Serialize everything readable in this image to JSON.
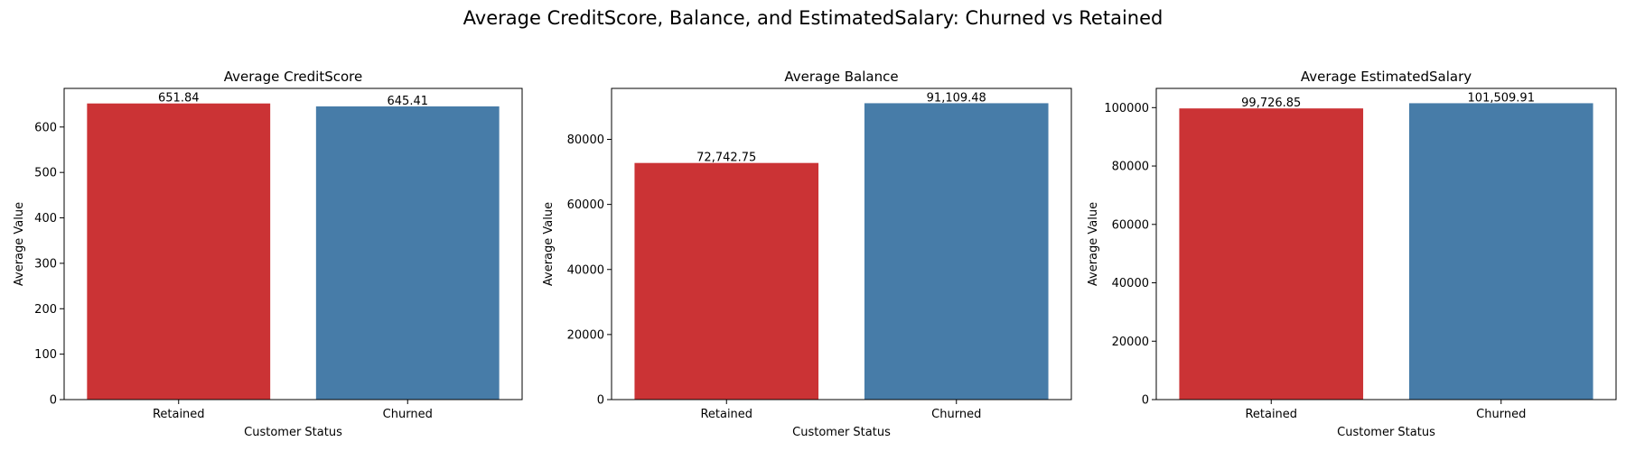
{
  "figure": {
    "title": "Average CreditScore, Balance, and EstimatedSalary: Churned vs Retained"
  },
  "colors": {
    "retained": "#cb3335",
    "churned": "#477ca8"
  },
  "chart_data": [
    {
      "type": "bar",
      "title": "Average CreditScore",
      "xlabel": "Customer Status",
      "ylabel": "Average Value",
      "categories": [
        "Retained",
        "Churned"
      ],
      "values": [
        651.84,
        645.41
      ],
      "value_labels": [
        "651.84",
        "645.41"
      ],
      "ylim": [
        0,
        685
      ],
      "yticks": [
        0,
        100,
        200,
        300,
        400,
        500,
        600
      ],
      "grid": false
    },
    {
      "type": "bar",
      "title": "Average Balance",
      "xlabel": "Customer Status",
      "ylabel": "Average Value",
      "categories": [
        "Retained",
        "Churned"
      ],
      "values": [
        72742.75,
        91109.48
      ],
      "value_labels": [
        "72,742.75",
        "91,109.48"
      ],
      "ylim": [
        0,
        95665
      ],
      "yticks": [
        0,
        20000,
        40000,
        60000,
        80000
      ],
      "grid": false
    },
    {
      "type": "bar",
      "title": "Average EstimatedSalary",
      "xlabel": "Customer Status",
      "ylabel": "Average Value",
      "categories": [
        "Retained",
        "Churned"
      ],
      "values": [
        99726.85,
        101509.91
      ],
      "value_labels": [
        "99,726.85",
        "101,509.91"
      ],
      "ylim": [
        0,
        106585
      ],
      "yticks": [
        0,
        20000,
        40000,
        60000,
        80000,
        100000
      ],
      "grid": false
    }
  ]
}
